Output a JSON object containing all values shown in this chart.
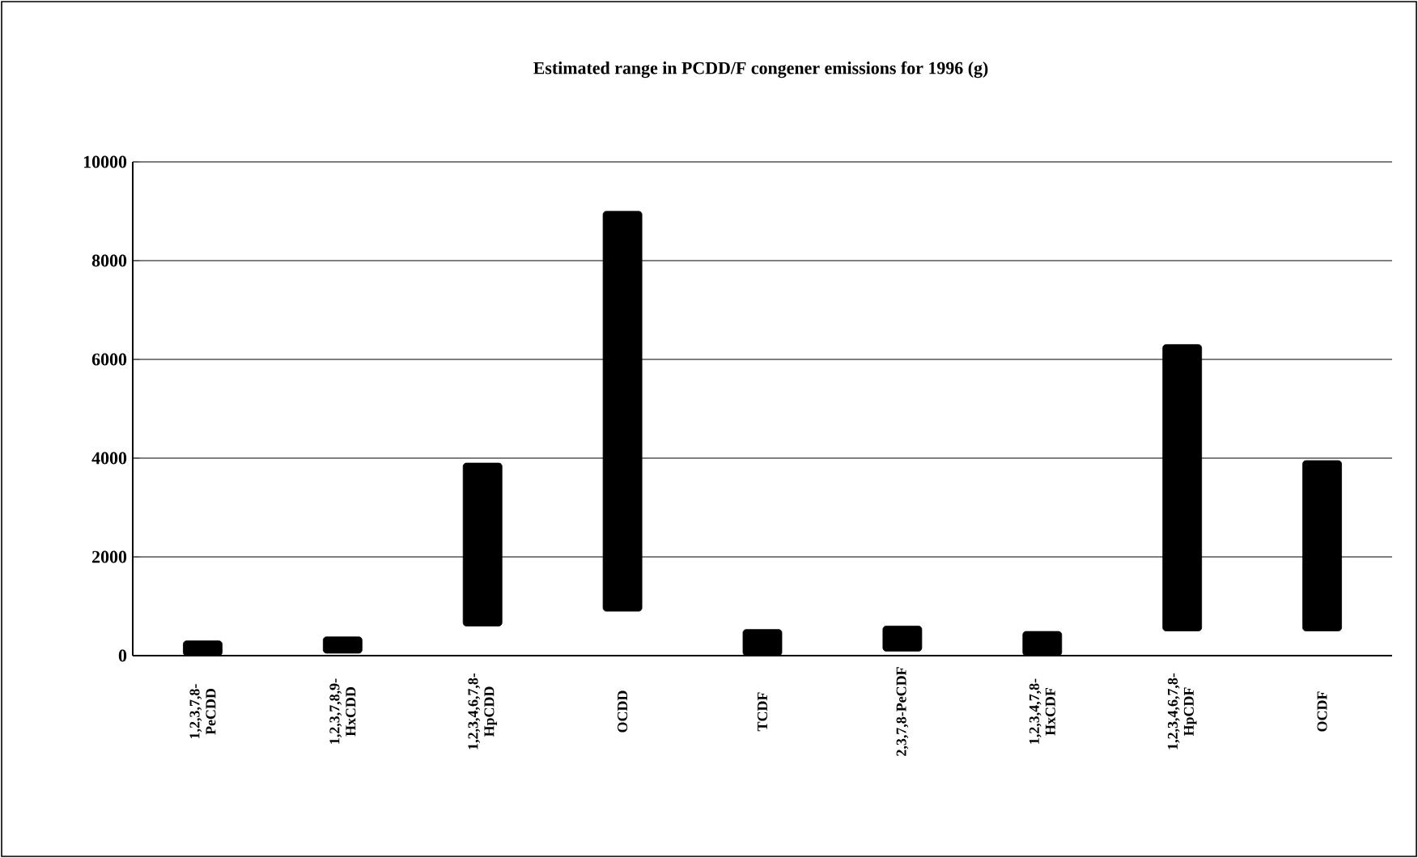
{
  "chart_data": {
    "type": "bar",
    "title": "Estimated range in PCDD/F congener emissions for 1996 (g)",
    "categories": [
      "1,2,3,7,8- PeCDD",
      "1,2,3,7,8,9- HxCDD",
      "1,2,3,4,6,7,8- HpCDD",
      "OCDD",
      "TCDF",
      "2,3,7,8-PeCDF",
      "1,2,3,4,7,8- HxCDF",
      "1,2,3,4,6,7,8- HpCDF",
      "OCDF"
    ],
    "base": [
      0,
      50,
      600,
      900,
      0,
      90,
      0,
      500,
      500
    ],
    "values": [
      300,
      330,
      3300,
      8100,
      530,
      510,
      490,
      5800,
      3450
    ],
    "color": "#000000",
    "ylim": [
      0,
      10000
    ],
    "yticks": [
      0,
      2000,
      4000,
      6000,
      8000,
      10000
    ],
    "grid": "y"
  }
}
